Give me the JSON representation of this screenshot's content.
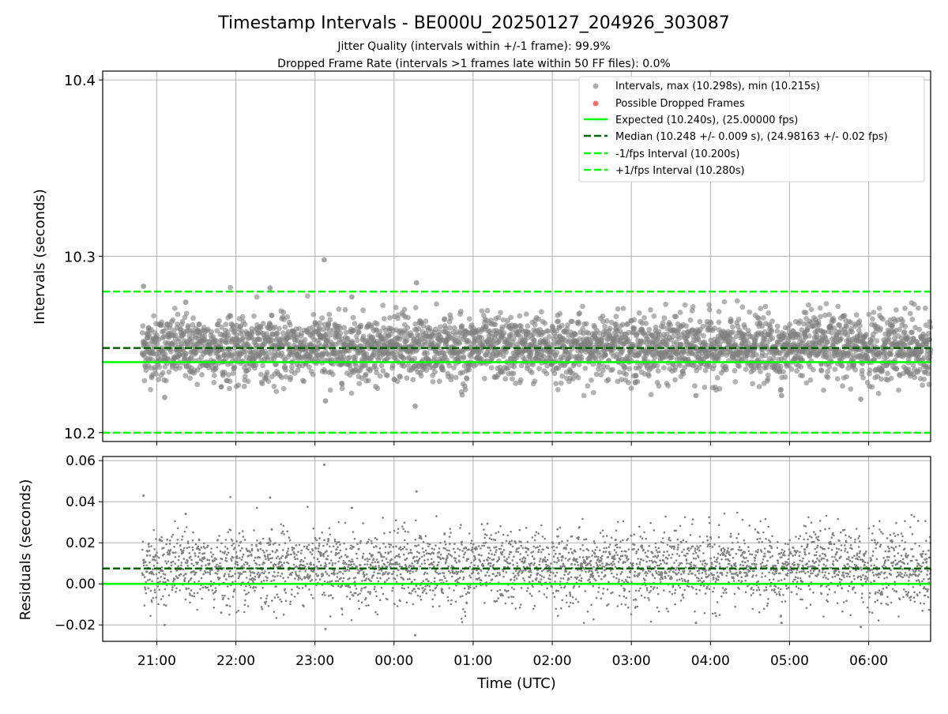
{
  "figure": {
    "title": "Timestamp Intervals - BE000U_20250127_204926_303087",
    "subtitle_1": "Jitter Quality (intervals within +/-1 frame): 99.9%",
    "subtitle_2": "Dropped Frame Rate (intervals >1 frames late within 50 FF files): 0.0%"
  },
  "colors": {
    "scatter": "#808080",
    "dropped": "#f08080",
    "expected": "#00ff00",
    "median": "#006400",
    "fps_bounds": "#00ff00",
    "grid": "#b0b0b0"
  },
  "chart_data": [
    {
      "type": "scatter",
      "name": "intervals",
      "ylabel": "Intervals (seconds)",
      "ylim": [
        10.195,
        10.405
      ],
      "xlim": [
        "20:19",
        "06:47"
      ],
      "x_start": "20:49",
      "x_end": "06:47",
      "y_ticks": [
        "10.2",
        "10.3",
        "10.4"
      ],
      "y_tick_values": [
        10.2,
        10.3,
        10.4
      ],
      "grid": true,
      "legend_position": "top-right",
      "legend": [
        {
          "label": "Intervals, max (10.298s), min (10.215s)",
          "kind": "marker",
          "color": "#909090"
        },
        {
          "label": "Possible Dropped Frames",
          "kind": "marker",
          "color": "#f06060"
        },
        {
          "label": "Expected (10.240s), (25.00000 fps)",
          "kind": "solid",
          "color": "#00ff00"
        },
        {
          "label": "Median (10.248 +/- 0.009 s), (24.98163 +/- 0.02 fps)",
          "kind": "dashed",
          "color": "#006400"
        },
        {
          "label": "-1/fps Interval (10.200s)",
          "kind": "dashed",
          "color": "#00ff00"
        },
        {
          "label": "+1/fps Interval (10.280s)",
          "kind": "dashed",
          "color": "#00ff00"
        }
      ],
      "lines": {
        "expected": 10.24,
        "median": 10.248,
        "minus_fps": 10.2,
        "plus_fps": 10.28
      },
      "max": 10.298,
      "min": 10.215,
      "center": 10.248,
      "spread": 0.009,
      "count": 3500,
      "outliers": [
        {
          "x": "20:50",
          "y": 10.283
        },
        {
          "x": "21:22",
          "y": 10.274
        },
        {
          "x": "22:26",
          "y": 10.282
        },
        {
          "x": "23:07",
          "y": 10.298
        },
        {
          "x": "23:28",
          "y": 10.277
        },
        {
          "x": "00:17",
          "y": 10.285
        },
        {
          "x": "00:16",
          "y": 10.215
        },
        {
          "x": "23:08",
          "y": 10.218
        },
        {
          "x": "21:06",
          "y": 10.22
        },
        {
          "x": "05:54",
          "y": 10.219
        },
        {
          "x": "03:49",
          "y": 10.221
        },
        {
          "x": "04:54",
          "y": 10.221
        }
      ]
    },
    {
      "type": "scatter",
      "name": "residuals",
      "xlabel": "Time (UTC)",
      "ylabel": "Residuals (seconds)",
      "ylim": [
        -0.028,
        0.062
      ],
      "xlim": [
        "20:19",
        "06:47"
      ],
      "x_ticks": [
        "21:00",
        "22:00",
        "23:00",
        "00:00",
        "01:00",
        "02:00",
        "03:00",
        "04:00",
        "05:00",
        "06:00"
      ],
      "y_ticks": [
        "−0.02",
        "0.00",
        "0.02",
        "0.04",
        "0.06"
      ],
      "y_tick_values": [
        -0.02,
        0.0,
        0.02,
        0.04,
        0.06
      ],
      "grid": true,
      "lines": {
        "zero": 0.0,
        "median": 0.0075
      }
    }
  ]
}
